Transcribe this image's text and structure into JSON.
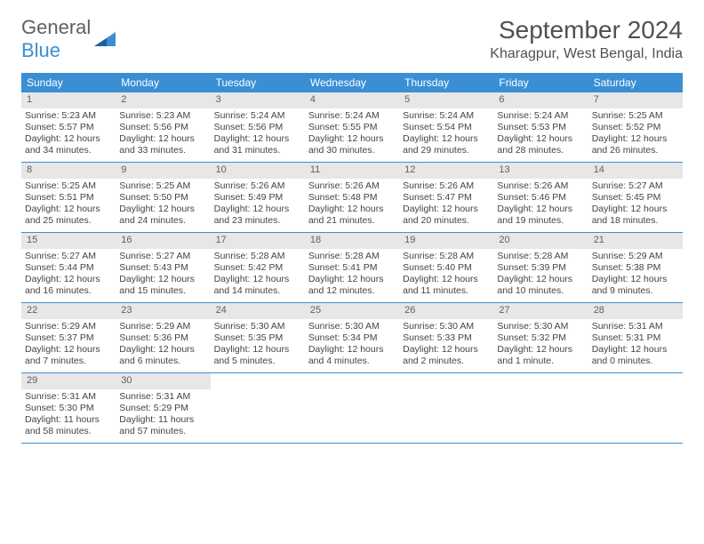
{
  "logo": {
    "text1": "General",
    "text2": "Blue"
  },
  "title": "September 2024",
  "location": "Kharagpur, West Bengal, India",
  "colors": {
    "header_bg": "#3a8fd4",
    "header_text": "#ffffff",
    "daynum_bg": "#e7e7e7",
    "border": "#3a8fd4",
    "text": "#444444"
  },
  "day_labels": [
    "Sunday",
    "Monday",
    "Tuesday",
    "Wednesday",
    "Thursday",
    "Friday",
    "Saturday"
  ],
  "weeks": [
    [
      {
        "n": "1",
        "sunrise": "Sunrise: 5:23 AM",
        "sunset": "Sunset: 5:57 PM",
        "d1": "Daylight: 12 hours",
        "d2": "and 34 minutes."
      },
      {
        "n": "2",
        "sunrise": "Sunrise: 5:23 AM",
        "sunset": "Sunset: 5:56 PM",
        "d1": "Daylight: 12 hours",
        "d2": "and 33 minutes."
      },
      {
        "n": "3",
        "sunrise": "Sunrise: 5:24 AM",
        "sunset": "Sunset: 5:56 PM",
        "d1": "Daylight: 12 hours",
        "d2": "and 31 minutes."
      },
      {
        "n": "4",
        "sunrise": "Sunrise: 5:24 AM",
        "sunset": "Sunset: 5:55 PM",
        "d1": "Daylight: 12 hours",
        "d2": "and 30 minutes."
      },
      {
        "n": "5",
        "sunrise": "Sunrise: 5:24 AM",
        "sunset": "Sunset: 5:54 PM",
        "d1": "Daylight: 12 hours",
        "d2": "and 29 minutes."
      },
      {
        "n": "6",
        "sunrise": "Sunrise: 5:24 AM",
        "sunset": "Sunset: 5:53 PM",
        "d1": "Daylight: 12 hours",
        "d2": "and 28 minutes."
      },
      {
        "n": "7",
        "sunrise": "Sunrise: 5:25 AM",
        "sunset": "Sunset: 5:52 PM",
        "d1": "Daylight: 12 hours",
        "d2": "and 26 minutes."
      }
    ],
    [
      {
        "n": "8",
        "sunrise": "Sunrise: 5:25 AM",
        "sunset": "Sunset: 5:51 PM",
        "d1": "Daylight: 12 hours",
        "d2": "and 25 minutes."
      },
      {
        "n": "9",
        "sunrise": "Sunrise: 5:25 AM",
        "sunset": "Sunset: 5:50 PM",
        "d1": "Daylight: 12 hours",
        "d2": "and 24 minutes."
      },
      {
        "n": "10",
        "sunrise": "Sunrise: 5:26 AM",
        "sunset": "Sunset: 5:49 PM",
        "d1": "Daylight: 12 hours",
        "d2": "and 23 minutes."
      },
      {
        "n": "11",
        "sunrise": "Sunrise: 5:26 AM",
        "sunset": "Sunset: 5:48 PM",
        "d1": "Daylight: 12 hours",
        "d2": "and 21 minutes."
      },
      {
        "n": "12",
        "sunrise": "Sunrise: 5:26 AM",
        "sunset": "Sunset: 5:47 PM",
        "d1": "Daylight: 12 hours",
        "d2": "and 20 minutes."
      },
      {
        "n": "13",
        "sunrise": "Sunrise: 5:26 AM",
        "sunset": "Sunset: 5:46 PM",
        "d1": "Daylight: 12 hours",
        "d2": "and 19 minutes."
      },
      {
        "n": "14",
        "sunrise": "Sunrise: 5:27 AM",
        "sunset": "Sunset: 5:45 PM",
        "d1": "Daylight: 12 hours",
        "d2": "and 18 minutes."
      }
    ],
    [
      {
        "n": "15",
        "sunrise": "Sunrise: 5:27 AM",
        "sunset": "Sunset: 5:44 PM",
        "d1": "Daylight: 12 hours",
        "d2": "and 16 minutes."
      },
      {
        "n": "16",
        "sunrise": "Sunrise: 5:27 AM",
        "sunset": "Sunset: 5:43 PM",
        "d1": "Daylight: 12 hours",
        "d2": "and 15 minutes."
      },
      {
        "n": "17",
        "sunrise": "Sunrise: 5:28 AM",
        "sunset": "Sunset: 5:42 PM",
        "d1": "Daylight: 12 hours",
        "d2": "and 14 minutes."
      },
      {
        "n": "18",
        "sunrise": "Sunrise: 5:28 AM",
        "sunset": "Sunset: 5:41 PM",
        "d1": "Daylight: 12 hours",
        "d2": "and 12 minutes."
      },
      {
        "n": "19",
        "sunrise": "Sunrise: 5:28 AM",
        "sunset": "Sunset: 5:40 PM",
        "d1": "Daylight: 12 hours",
        "d2": "and 11 minutes."
      },
      {
        "n": "20",
        "sunrise": "Sunrise: 5:28 AM",
        "sunset": "Sunset: 5:39 PM",
        "d1": "Daylight: 12 hours",
        "d2": "and 10 minutes."
      },
      {
        "n": "21",
        "sunrise": "Sunrise: 5:29 AM",
        "sunset": "Sunset: 5:38 PM",
        "d1": "Daylight: 12 hours",
        "d2": "and 9 minutes."
      }
    ],
    [
      {
        "n": "22",
        "sunrise": "Sunrise: 5:29 AM",
        "sunset": "Sunset: 5:37 PM",
        "d1": "Daylight: 12 hours",
        "d2": "and 7 minutes."
      },
      {
        "n": "23",
        "sunrise": "Sunrise: 5:29 AM",
        "sunset": "Sunset: 5:36 PM",
        "d1": "Daylight: 12 hours",
        "d2": "and 6 minutes."
      },
      {
        "n": "24",
        "sunrise": "Sunrise: 5:30 AM",
        "sunset": "Sunset: 5:35 PM",
        "d1": "Daylight: 12 hours",
        "d2": "and 5 minutes."
      },
      {
        "n": "25",
        "sunrise": "Sunrise: 5:30 AM",
        "sunset": "Sunset: 5:34 PM",
        "d1": "Daylight: 12 hours",
        "d2": "and 4 minutes."
      },
      {
        "n": "26",
        "sunrise": "Sunrise: 5:30 AM",
        "sunset": "Sunset: 5:33 PM",
        "d1": "Daylight: 12 hours",
        "d2": "and 2 minutes."
      },
      {
        "n": "27",
        "sunrise": "Sunrise: 5:30 AM",
        "sunset": "Sunset: 5:32 PM",
        "d1": "Daylight: 12 hours",
        "d2": "and 1 minute."
      },
      {
        "n": "28",
        "sunrise": "Sunrise: 5:31 AM",
        "sunset": "Sunset: 5:31 PM",
        "d1": "Daylight: 12 hours",
        "d2": "and 0 minutes."
      }
    ],
    [
      {
        "n": "29",
        "sunrise": "Sunrise: 5:31 AM",
        "sunset": "Sunset: 5:30 PM",
        "d1": "Daylight: 11 hours",
        "d2": "and 58 minutes."
      },
      {
        "n": "30",
        "sunrise": "Sunrise: 5:31 AM",
        "sunset": "Sunset: 5:29 PM",
        "d1": "Daylight: 11 hours",
        "d2": "and 57 minutes."
      },
      null,
      null,
      null,
      null,
      null
    ]
  ]
}
